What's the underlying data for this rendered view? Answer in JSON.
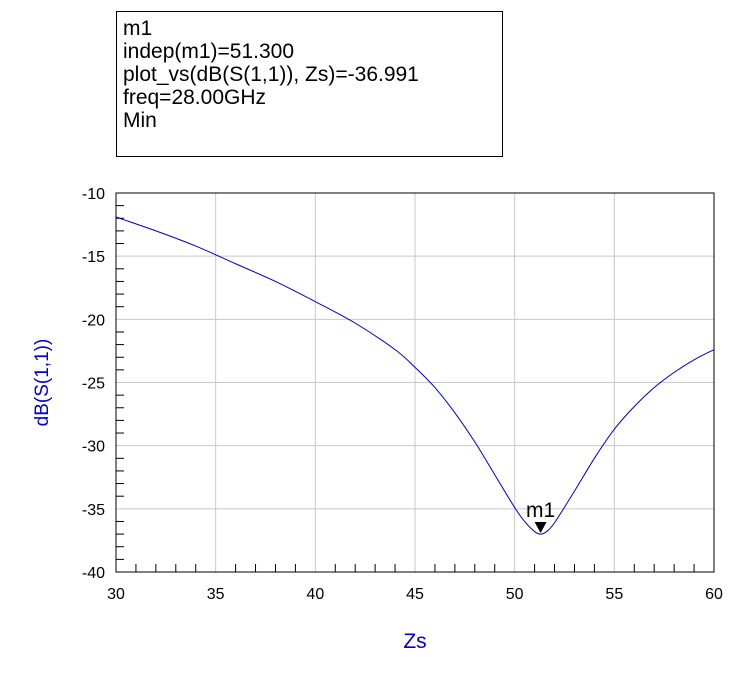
{
  "marker_readout": {
    "name": "m1",
    "indep": "indep(m1)=51.300",
    "plot_vs": "plot_vs(dB(S(1,1)), Zs)=-36.991",
    "freq": "freq=28.00GHz",
    "mode": "Min"
  },
  "chart_data": {
    "type": "line",
    "xlabel": "Zs",
    "ylabel": "dB(S(1,1))",
    "xlim": [
      30,
      60
    ],
    "ylim": [
      -40,
      -10
    ],
    "x_ticks": [
      30,
      35,
      40,
      45,
      50,
      55,
      60
    ],
    "y_ticks": [
      -10,
      -15,
      -20,
      -25,
      -30,
      -35,
      -40
    ],
    "grid": true,
    "line_color": "#0000cc",
    "axis_label_color": "#0000cc",
    "series": [
      {
        "x": [
          30,
          32,
          34,
          36,
          38,
          40,
          42,
          44,
          45,
          46,
          47,
          48,
          49,
          50,
          50.5,
          51,
          51.3,
          51.6,
          52,
          53,
          54,
          55,
          56,
          57,
          58,
          59,
          60
        ],
        "y": [
          -11.9,
          -13.0,
          -14.2,
          -15.6,
          -17.0,
          -18.6,
          -20.3,
          -22.4,
          -23.8,
          -25.4,
          -27.4,
          -29.7,
          -32.3,
          -34.9,
          -36.0,
          -36.8,
          -37.0,
          -36.8,
          -36.1,
          -33.6,
          -31.0,
          -28.7,
          -26.9,
          -25.4,
          -24.2,
          -23.2,
          -22.4
        ]
      }
    ],
    "markers": [
      {
        "name": "m1",
        "x": 51.3,
        "y": -36.991
      }
    ]
  }
}
